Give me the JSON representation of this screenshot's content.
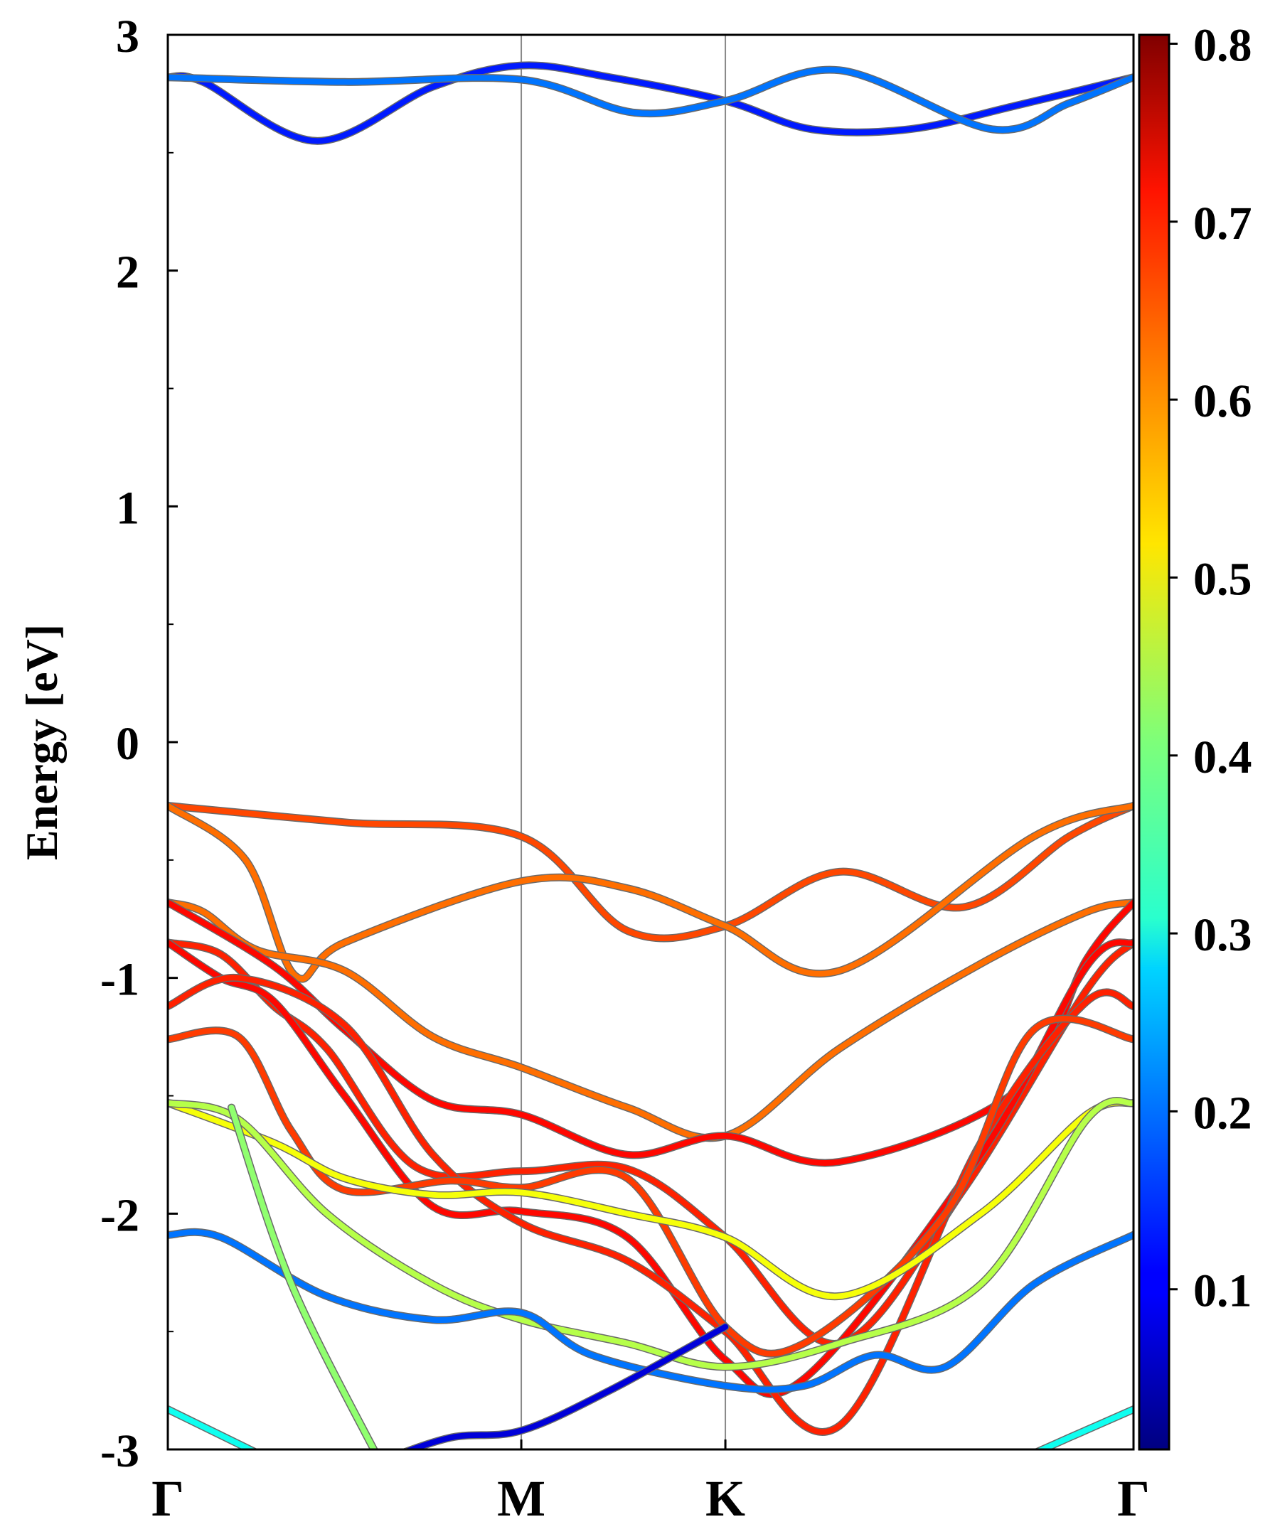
{
  "chart_data": {
    "type": "line",
    "title": "",
    "ylabel": "Energy [eV]",
    "xlabel": "",
    "ylim": [
      -3,
      3
    ],
    "grid": false,
    "x": [
      0,
      1.0,
      1.5774,
      2.7321
    ],
    "kpoints": [
      {
        "label": "Γ",
        "x": 0
      },
      {
        "label": "M",
        "x": 1.0
      },
      {
        "label": "K",
        "x": 1.5774
      },
      {
        "label": "Γ",
        "x": 2.7321
      }
    ],
    "yticks": [
      {
        "value": 3,
        "label": "3"
      },
      {
        "value": 2,
        "label": "2"
      },
      {
        "value": 1,
        "label": "1"
      },
      {
        "value": 0,
        "label": "0"
      },
      {
        "value": -1,
        "label": "-1"
      },
      {
        "value": -2,
        "label": "-2"
      },
      {
        "value": -3,
        "label": "-3"
      }
    ],
    "colorbar": {
      "range": [
        0.01,
        0.805
      ],
      "colormap": "jet",
      "ticks": [
        {
          "value": 0.1,
          "label": "0.1"
        },
        {
          "value": 0.2,
          "label": "0.2"
        },
        {
          "value": 0.3,
          "label": "0.3"
        },
        {
          "value": 0.4,
          "label": "0.4"
        },
        {
          "value": 0.5,
          "label": "0.5"
        },
        {
          "value": 0.6,
          "label": "0.6"
        },
        {
          "value": 0.7,
          "label": "0.7"
        },
        {
          "value": 0.8,
          "label": "0.8"
        }
      ]
    },
    "series": [
      {
        "points": [
          [
            0,
            2.82
          ],
          [
            0.1,
            2.8
          ],
          [
            0.42,
            2.55
          ],
          [
            0.75,
            2.78
          ],
          [
            1.0,
            2.87
          ],
          [
            1.25,
            2.82
          ],
          [
            1.5774,
            2.72
          ],
          [
            1.82,
            2.6
          ],
          [
            2.1,
            2.6
          ],
          [
            2.4,
            2.7
          ],
          [
            2.7321,
            2.82
          ]
        ],
        "weight": 0.13
      },
      {
        "points": [
          [
            0,
            2.82
          ],
          [
            0.5,
            2.8
          ],
          [
            1.0,
            2.81
          ],
          [
            1.32,
            2.67
          ],
          [
            1.5774,
            2.72
          ],
          [
            1.9,
            2.85
          ],
          [
            2.33,
            2.6
          ],
          [
            2.55,
            2.71
          ],
          [
            2.7321,
            2.82
          ]
        ],
        "weight": 0.2
      },
      {
        "points": [
          [
            0,
            -0.27
          ],
          [
            0.5,
            -0.34
          ],
          [
            1.0,
            -0.4
          ],
          [
            1.3,
            -0.8
          ],
          [
            1.5774,
            -0.78
          ],
          [
            1.9,
            -0.55
          ],
          [
            2.25,
            -0.7
          ],
          [
            2.55,
            -0.4
          ],
          [
            2.7321,
            -0.27
          ]
        ],
        "weight": 0.65
      },
      {
        "points": [
          [
            0,
            -0.27
          ],
          [
            0.22,
            -0.5
          ],
          [
            0.36,
            -0.99
          ],
          [
            0.5,
            -0.85
          ],
          [
            1.0,
            -0.59
          ],
          [
            1.3,
            -0.62
          ],
          [
            1.5774,
            -0.78
          ],
          [
            1.9,
            -0.97
          ],
          [
            2.45,
            -0.4
          ],
          [
            2.7321,
            -0.27
          ]
        ],
        "weight": 0.62
      },
      {
        "points": [
          [
            0,
            -0.68
          ],
          [
            0.1,
            -0.72
          ],
          [
            0.25,
            -0.88
          ],
          [
            0.5,
            -0.97
          ],
          [
            0.75,
            -1.25
          ],
          [
            1.0,
            -1.38
          ],
          [
            1.3,
            -1.55
          ],
          [
            1.5774,
            -1.67
          ],
          [
            1.9,
            -1.3
          ],
          [
            2.3,
            -0.94
          ],
          [
            2.6,
            -0.72
          ],
          [
            2.7321,
            -0.68
          ]
        ],
        "weight": 0.62
      },
      {
        "points": [
          [
            0,
            -0.68
          ],
          [
            0.3,
            -0.95
          ],
          [
            0.5,
            -1.22
          ],
          [
            0.75,
            -1.52
          ],
          [
            1.0,
            -1.58
          ],
          [
            1.3,
            -1.75
          ],
          [
            1.5774,
            -1.67
          ],
          [
            1.9,
            -1.78
          ],
          [
            2.4,
            -1.48
          ],
          [
            2.6,
            -0.92
          ],
          [
            2.7321,
            -0.68
          ]
        ],
        "weight": 0.7
      },
      {
        "points": [
          [
            0,
            -0.85
          ],
          [
            0.15,
            -0.9
          ],
          [
            0.3,
            -1.12
          ],
          [
            0.45,
            -1.3
          ],
          [
            0.7,
            -1.8
          ],
          [
            1.0,
            -1.82
          ],
          [
            1.3,
            -1.81
          ],
          [
            1.5774,
            -2.1
          ],
          [
            1.9,
            -2.55
          ],
          [
            2.25,
            -1.9
          ],
          [
            2.6,
            -1.05
          ],
          [
            2.7321,
            -0.85
          ]
        ],
        "weight": 0.68
      },
      {
        "points": [
          [
            0,
            -0.85
          ],
          [
            0.15,
            -1.0
          ],
          [
            0.3,
            -1.1
          ],
          [
            0.5,
            -1.5
          ],
          [
            0.75,
            -1.97
          ],
          [
            1.0,
            -1.99
          ],
          [
            1.3,
            -2.1
          ],
          [
            1.5774,
            -2.62
          ],
          [
            1.8,
            -2.7
          ],
          [
            2.3,
            -1.75
          ],
          [
            2.6,
            -0.95
          ],
          [
            2.7321,
            -0.85
          ]
        ],
        "weight": 0.7
      },
      {
        "points": [
          [
            0,
            -1.12
          ],
          [
            0.2,
            -1.0
          ],
          [
            0.5,
            -1.2
          ],
          [
            0.75,
            -1.75
          ],
          [
            1.0,
            -2.04
          ],
          [
            1.3,
            -2.2
          ],
          [
            1.5774,
            -2.5
          ],
          [
            1.9,
            -2.9
          ],
          [
            2.3,
            -1.7
          ],
          [
            2.6,
            -1.1
          ],
          [
            2.7321,
            -1.12
          ]
        ],
        "weight": 0.68
      },
      {
        "points": [
          [
            0,
            -1.26
          ],
          [
            0.2,
            -1.25
          ],
          [
            0.35,
            -1.65
          ],
          [
            0.5,
            -1.9
          ],
          [
            0.8,
            -1.86
          ],
          [
            1.0,
            -1.89
          ],
          [
            1.3,
            -1.85
          ],
          [
            1.5774,
            -2.48
          ],
          [
            1.8,
            -2.55
          ],
          [
            2.2,
            -2.0
          ],
          [
            2.45,
            -1.22
          ],
          [
            2.7321,
            -1.26
          ]
        ],
        "weight": 0.66
      },
      {
        "points": [
          [
            0,
            -1.53
          ],
          [
            0.3,
            -1.7
          ],
          [
            0.5,
            -1.85
          ],
          [
            0.75,
            -1.92
          ],
          [
            1.0,
            -1.91
          ],
          [
            1.3,
            -2.0
          ],
          [
            1.5774,
            -2.1
          ],
          [
            1.9,
            -2.35
          ],
          [
            2.3,
            -2.0
          ],
          [
            2.6,
            -1.58
          ],
          [
            2.7321,
            -1.53
          ]
        ],
        "weight": 0.5
      },
      {
        "points": [
          [
            0,
            -1.53
          ],
          [
            0.2,
            -1.6
          ],
          [
            0.45,
            -2.0
          ],
          [
            0.75,
            -2.3
          ],
          [
            1.0,
            -2.45
          ],
          [
            1.3,
            -2.55
          ],
          [
            1.5774,
            -2.65
          ],
          [
            1.9,
            -2.55
          ],
          [
            2.3,
            -2.3
          ],
          [
            2.6,
            -1.6
          ],
          [
            2.7321,
            -1.53
          ]
        ],
        "weight": 0.45
      },
      {
        "points": [
          [
            0,
            -2.09
          ],
          [
            0.15,
            -2.1
          ],
          [
            0.45,
            -2.35
          ],
          [
            0.75,
            -2.45
          ],
          [
            1.0,
            -2.42
          ],
          [
            1.2,
            -2.6
          ],
          [
            1.5774,
            -2.73
          ],
          [
            1.8,
            -2.73
          ],
          [
            2.0,
            -2.6
          ],
          [
            2.2,
            -2.65
          ],
          [
            2.45,
            -2.3
          ],
          [
            2.7321,
            -2.09
          ]
        ],
        "weight": 0.2
      },
      {
        "points": [
          [
            0,
            -2.83
          ],
          [
            0.3,
            -3.05
          ]
        ],
        "weight": 0.32
      },
      {
        "points": [
          [
            2.4,
            -3.05
          ],
          [
            2.55,
            -2.95
          ],
          [
            2.7321,
            -2.83
          ]
        ],
        "weight": 0.32
      },
      {
        "points": [
          [
            0.6,
            -3.05
          ],
          [
            0.8,
            -2.95
          ],
          [
            1.0,
            -2.92
          ],
          [
            1.25,
            -2.75
          ],
          [
            1.5774,
            -2.48
          ]
        ],
        "weight": 0.08
      },
      {
        "points": [
          [
            0.18,
            -1.55
          ],
          [
            0.35,
            -2.3
          ],
          [
            0.6,
            -3.05
          ]
        ],
        "weight": 0.42
      }
    ]
  }
}
